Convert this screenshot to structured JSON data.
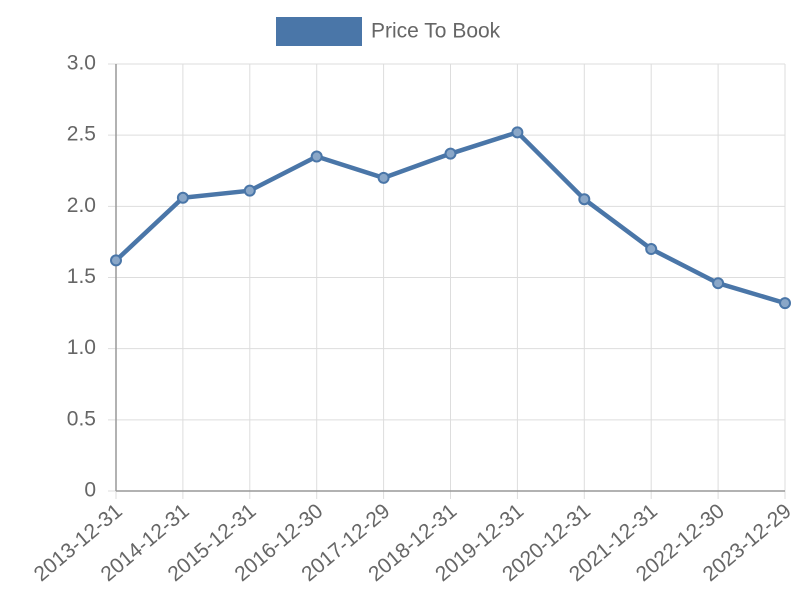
{
  "chart_data": {
    "type": "line",
    "x": [
      "2013-12-31",
      "2014-12-31",
      "2015-12-31",
      "2016-12-30",
      "2017-12-29",
      "2018-12-31",
      "2019-12-31",
      "2020-12-31",
      "2021-12-31",
      "2022-12-30",
      "2023-12-29"
    ],
    "series": [
      {
        "name": "Price To Book",
        "color": "#4a76a8",
        "values": [
          1.62,
          2.06,
          2.11,
          2.35,
          2.2,
          2.37,
          2.52,
          2.05,
          1.7,
          1.46,
          1.32
        ]
      }
    ],
    "ylim": [
      0,
      3
    ],
    "yticks": [
      0,
      0.5,
      {
        "value": 1,
        "label": "1.0"
      },
      1.5,
      {
        "value": 2,
        "label": "2.0"
      },
      2.5,
      {
        "value": 3,
        "label": "3.0"
      }
    ],
    "grid": true,
    "legend": "top"
  }
}
